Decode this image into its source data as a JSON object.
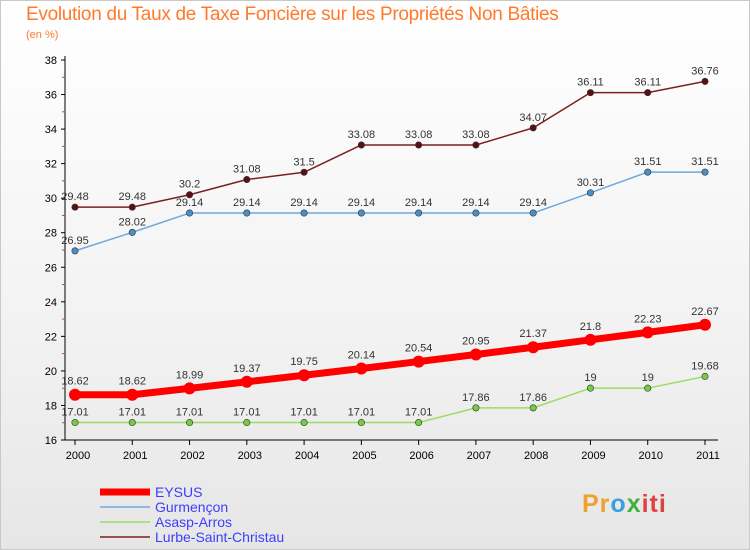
{
  "chart_data": {
    "type": "line",
    "title": "Evolution du Taux de Taxe Foncière sur les Propriétés Non Bâties",
    "subtitle": "(en %)",
    "x": [
      "2000",
      "2001",
      "2002",
      "2003",
      "2004",
      "2005",
      "2006",
      "2007",
      "2008",
      "2009",
      "2010",
      "2011"
    ],
    "ylim": [
      16,
      38
    ],
    "yticks": [
      "16",
      "18",
      "20",
      "22",
      "24",
      "26",
      "28",
      "30",
      "32",
      "34",
      "36",
      "38"
    ],
    "grid": false,
    "legend_position": "bottom-left",
    "series": [
      {
        "name": "Lurbe-Saint-Christau",
        "color": "#7a2020",
        "values": [
          29.48,
          29.48,
          30.2,
          31.08,
          31.5,
          33.08,
          33.08,
          33.08,
          34.07,
          36.11,
          36.11,
          36.76
        ],
        "labels": [
          "29.48",
          "29.48",
          "30.2",
          "31.08",
          "31.5",
          "33.08",
          "33.08",
          "33.08",
          "34.07",
          "36.11",
          "36.11",
          "36.76"
        ]
      },
      {
        "name": "Gurmençon",
        "color": "#6fa8dc",
        "values": [
          26.95,
          28.02,
          29.14,
          29.14,
          29.14,
          29.14,
          29.14,
          29.14,
          29.14,
          30.31,
          31.51,
          31.51
        ],
        "labels": [
          "26.95",
          "28.02",
          "29.14",
          "29.14",
          "29.14",
          "29.14",
          "29.14",
          "29.14",
          "29.14",
          "30.31",
          "31.51",
          "31.51"
        ]
      },
      {
        "name": "EYSUS",
        "color": "#ff0000",
        "values": [
          18.62,
          18.62,
          18.99,
          19.37,
          19.75,
          20.14,
          20.54,
          20.95,
          21.37,
          21.8,
          22.23,
          22.67
        ],
        "labels": [
          "18.62",
          "18.62",
          "18.99",
          "19.37",
          "19.75",
          "20.14",
          "20.54",
          "20.95",
          "21.37",
          "21.8",
          "22.23",
          "22.67"
        ]
      },
      {
        "name": "Asasp-Arros",
        "color": "#99dd66",
        "values": [
          17.01,
          17.01,
          17.01,
          17.01,
          17.01,
          17.01,
          17.01,
          17.86,
          17.86,
          19,
          19,
          19.68
        ],
        "labels": [
          "17.01",
          "17.01",
          "17.01",
          "17.01",
          "17.01",
          "17.01",
          "17.01",
          "17.86",
          "17.86",
          "19",
          "19",
          "19.68"
        ]
      }
    ],
    "legend": [
      "EYSUS",
      "Gurmençon",
      "Asasp-Arros",
      "Lurbe-Saint-Christau"
    ]
  },
  "logo": {
    "p1": "Pr",
    "p2": "o",
    "p3": "x",
    "p4": "iti"
  }
}
